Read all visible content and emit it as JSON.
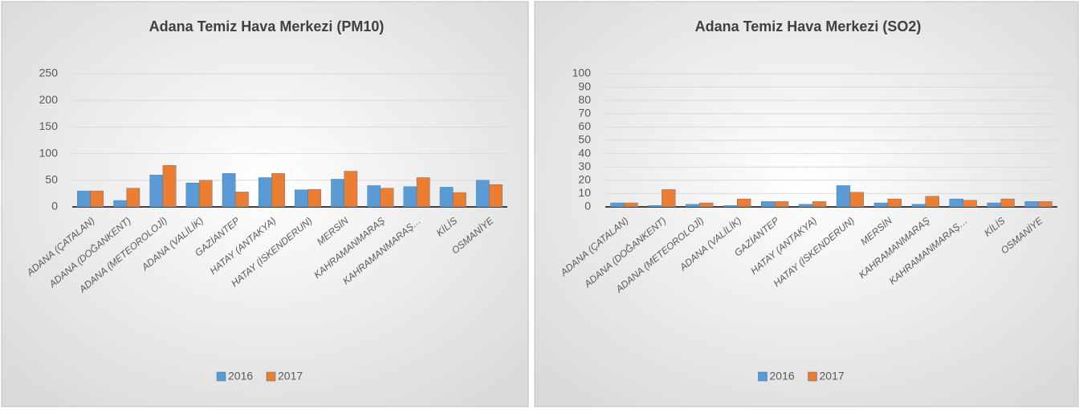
{
  "chart_data": [
    {
      "type": "bar",
      "title": "Adana Temiz Hava Merkezi (PM10)",
      "categories": [
        "ADANA (ÇATALAN)",
        "ADANA (DOĞANKENT)",
        "ADANA (METEOROLOJİ)",
        "ADANA (VALİLİK)",
        "GAZİANTEP",
        "HATAY (ANTAKYA)",
        "HATAY (İSKENDERUN)",
        "MERSİN",
        "KAHRAMANMARAŞ",
        "KAHRAMANMARAŞ…",
        "KİLİS",
        "OSMANİYE"
      ],
      "series": [
        {
          "name": "2016",
          "color": "#5b9bd5",
          "values": [
            30,
            12,
            60,
            45,
            63,
            55,
            32,
            52,
            40,
            38,
            37,
            50
          ]
        },
        {
          "name": "2017",
          "color": "#ed7d31",
          "values": [
            30,
            35,
            78,
            50,
            28,
            63,
            33,
            67,
            35,
            55,
            27,
            42
          ]
        }
      ],
      "ylim": [
        0,
        250
      ],
      "yticks": [
        0,
        50,
        100,
        150,
        200,
        250
      ],
      "grid": true,
      "legend": "bottom"
    },
    {
      "type": "bar",
      "title": "Adana Temiz Hava Merkezi (SO2)",
      "categories": [
        "ADANA (ÇATALAN)",
        "ADANA (DOĞANKENT)",
        "ADANA (METEOROLOJİ)",
        "ADANA (VALİLİK)",
        "GAZİANTEP",
        "HATAY (ANTAKYA)",
        "HATAY (İSKENDERUN)",
        "MERSİN",
        "KAHRAMANMARAŞ",
        "KAHRAMANMARAŞ…",
        "KİLİS",
        "OSMANİYE"
      ],
      "series": [
        {
          "name": "2016",
          "color": "#5b9bd5",
          "values": [
            3,
            1,
            2,
            1,
            4,
            2,
            16,
            3,
            2,
            6,
            3,
            4
          ]
        },
        {
          "name": "2017",
          "color": "#ed7d31",
          "values": [
            3,
            13,
            3,
            6,
            4,
            4,
            11,
            6,
            8,
            5,
            6,
            4
          ]
        }
      ],
      "ylim": [
        0,
        100
      ],
      "yticks": [
        0,
        10,
        20,
        30,
        40,
        50,
        60,
        70,
        80,
        90,
        100
      ],
      "grid": true,
      "legend": "bottom"
    }
  ]
}
